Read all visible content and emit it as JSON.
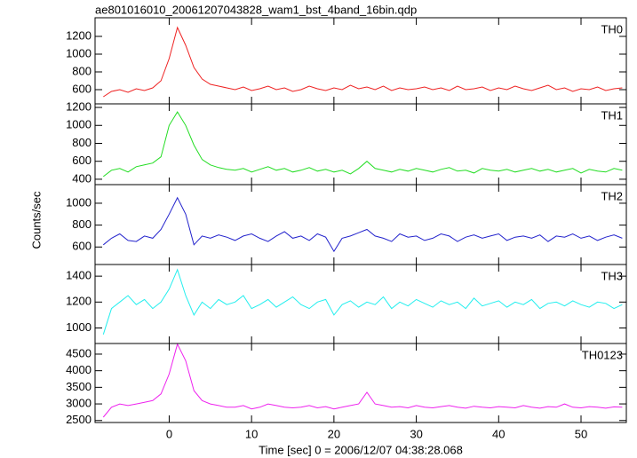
{
  "title": "ae801016010_20061207043828_wam1_bst_4band_16bin.qdp",
  "x_label": "Time [sec] 0 = 2006/12/07 04:38:28.068",
  "y_label": "Counts/sec",
  "x": [
    -8,
    -7,
    -6,
    -5,
    -4,
    -3,
    -2,
    -1,
    0,
    1,
    2,
    3,
    4,
    5,
    6,
    7,
    8,
    9,
    10,
    11,
    12,
    13,
    14,
    15,
    16,
    17,
    18,
    19,
    20,
    21,
    22,
    23,
    24,
    25,
    26,
    27,
    28,
    29,
    30,
    31,
    32,
    33,
    34,
    35,
    36,
    37,
    38,
    39,
    40,
    41,
    42,
    43,
    44,
    45,
    46,
    47,
    48,
    49,
    50,
    51,
    52,
    53,
    54,
    55
  ],
  "xlim": [
    -9,
    55.5
  ],
  "xticks": [
    0,
    10,
    20,
    30,
    40,
    50
  ],
  "chart_data": [
    {
      "type": "line",
      "label": "TH0",
      "color": "#ee2222",
      "ylim": [
        440,
        1410
      ],
      "yticks": [
        600,
        800,
        1000,
        1200
      ],
      "values": [
        520,
        580,
        600,
        570,
        610,
        590,
        620,
        700,
        950,
        1300,
        1100,
        850,
        720,
        660,
        640,
        620,
        600,
        630,
        590,
        610,
        640,
        600,
        620,
        580,
        600,
        640,
        610,
        590,
        620,
        600,
        650,
        610,
        630,
        600,
        640,
        590,
        620,
        600,
        610,
        630,
        600,
        620,
        590,
        640,
        600,
        610,
        630,
        590,
        620,
        600,
        640,
        610,
        590,
        620,
        650,
        600,
        620,
        580,
        610,
        600,
        630,
        590,
        610,
        620
      ]
    },
    {
      "type": "line",
      "label": "TH1",
      "color": "#22dd22",
      "ylim": [
        340,
        1240
      ],
      "yticks": [
        400,
        600,
        800,
        1000,
        1200
      ],
      "values": [
        430,
        500,
        520,
        480,
        540,
        560,
        580,
        650,
        1000,
        1150,
        1000,
        780,
        620,
        560,
        530,
        510,
        500,
        520,
        480,
        510,
        540,
        500,
        520,
        480,
        500,
        530,
        490,
        510,
        480,
        500,
        460,
        520,
        600,
        520,
        500,
        480,
        510,
        490,
        520,
        500,
        480,
        510,
        530,
        490,
        500,
        470,
        520,
        500,
        490,
        510,
        480,
        500,
        520,
        490,
        510,
        480,
        500,
        520,
        470,
        510,
        490,
        480,
        520,
        500
      ]
    },
    {
      "type": "line",
      "label": "TH2",
      "color": "#2222cc",
      "ylim": [
        440,
        1170
      ],
      "yticks": [
        600,
        800,
        1000
      ],
      "values": [
        620,
        680,
        720,
        660,
        650,
        700,
        680,
        760,
        900,
        1050,
        900,
        620,
        700,
        680,
        710,
        690,
        660,
        700,
        720,
        680,
        650,
        700,
        740,
        680,
        700,
        660,
        720,
        690,
        560,
        680,
        700,
        730,
        760,
        700,
        680,
        650,
        720,
        690,
        700,
        660,
        680,
        720,
        700,
        650,
        690,
        710,
        680,
        700,
        720,
        660,
        690,
        700,
        680,
        710,
        650,
        700,
        690,
        720,
        680,
        700,
        660,
        690,
        710,
        680
      ]
    },
    {
      "type": "line",
      "label": "TH3",
      "color": "#22eeee",
      "ylim": [
        880,
        1490
      ],
      "yticks": [
        1000,
        1200,
        1400
      ],
      "values": [
        950,
        1150,
        1200,
        1250,
        1180,
        1220,
        1150,
        1200,
        1300,
        1450,
        1250,
        1100,
        1200,
        1150,
        1220,
        1180,
        1200,
        1250,
        1150,
        1180,
        1220,
        1160,
        1200,
        1240,
        1180,
        1150,
        1200,
        1220,
        1100,
        1180,
        1210,
        1160,
        1200,
        1180,
        1240,
        1150,
        1200,
        1170,
        1220,
        1190,
        1160,
        1210,
        1180,
        1200,
        1150,
        1230,
        1170,
        1190,
        1210,
        1160,
        1200,
        1180,
        1220,
        1150,
        1190,
        1200,
        1170,
        1210,
        1180,
        1160,
        1200,
        1190,
        1150,
        1180
      ]
    },
    {
      "type": "line",
      "label": "TH0123",
      "color": "#ee22ee",
      "ylim": [
        2440,
        4820
      ],
      "yticks": [
        2500,
        3000,
        3500,
        4000,
        4500
      ],
      "values": [
        2600,
        2900,
        3000,
        2950,
        3000,
        3050,
        3100,
        3300,
        3900,
        4800,
        4300,
        3400,
        3100,
        3000,
        2950,
        2900,
        2900,
        2950,
        2850,
        2900,
        3000,
        2950,
        2900,
        2880,
        2900,
        2950,
        2880,
        2920,
        2850,
        2900,
        2950,
        3000,
        3350,
        3000,
        2950,
        2900,
        2920,
        2880,
        2950,
        2900,
        2880,
        2920,
        2950,
        2900,
        2870,
        2930,
        2900,
        2880,
        2920,
        2900,
        2880,
        2950,
        2900,
        2870,
        2920,
        2900,
        3000,
        2900,
        2880,
        2920,
        2900,
        2870,
        2910,
        2900
      ]
    }
  ]
}
